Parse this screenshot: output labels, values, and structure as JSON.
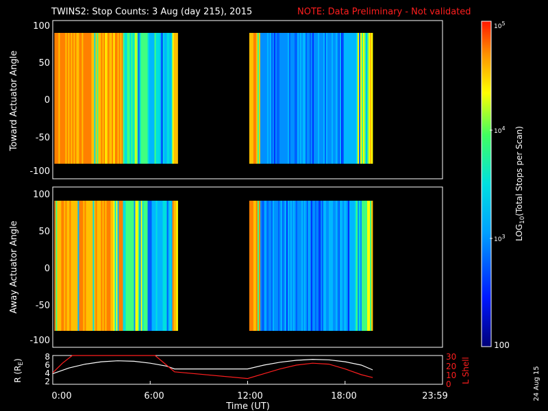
{
  "header": {
    "title": "TWINS2: Stop Counts:  3 Aug (day 215), 2015",
    "note": "NOTE: Data Preliminary - Not validated",
    "note_color": "#ff1e1e"
  },
  "footer": {
    "date_stamp": "24 Aug 15"
  },
  "chart_data": [
    {
      "type": "heatmap",
      "ylabel": "Toward Actuator Angle",
      "ylim": [
        -100,
        100
      ],
      "yticks": [
        "100",
        "50",
        "0",
        "-50",
        "-100"
      ],
      "x_range_hours": [
        0,
        24
      ],
      "data_segments_hours": [
        [
          0.1,
          7.7
        ],
        [
          12.1,
          19.7
        ]
      ],
      "colorscale": "log10, 100 to 100000 (blue to red)"
    },
    {
      "type": "heatmap",
      "ylabel": "Away Actuator Angle",
      "ylim": [
        -100,
        100
      ],
      "yticks": [
        "100",
        "50",
        "0",
        "-50",
        "-100"
      ],
      "x_range_hours": [
        0,
        24
      ],
      "data_segments_hours": [
        [
          0.1,
          7.7
        ],
        [
          12.1,
          19.7
        ]
      ],
      "colorscale": "log10, 100 to 100000 (blue to red)"
    },
    {
      "type": "line",
      "xlabel": "Time (UT)",
      "xticks": [
        "0:00",
        "6:00",
        "12:00",
        "18:00",
        "23:59"
      ],
      "left_axis": {
        "label": "R (RE)",
        "label_main": "R (R",
        "label_sub": "E",
        "label_end": ")",
        "ticks": [
          "8",
          "6",
          "4",
          "2"
        ],
        "ylim": [
          2,
          8
        ]
      },
      "right_axis": {
        "label": "L Shell",
        "ticks": [
          "30",
          "20",
          "10",
          "0"
        ],
        "ylim": [
          0,
          30
        ],
        "color": "#ff1e1e"
      },
      "series": [
        {
          "name": "R",
          "color": "#ffffff",
          "x": [
            0.0,
            1.0,
            2.0,
            3.0,
            4.0,
            5.0,
            6.0,
            7.0,
            7.5,
            12.0,
            13.0,
            14.0,
            15.0,
            16.0,
            17.0,
            18.0,
            19.0,
            19.7
          ],
          "y": [
            4.2,
            5.4,
            6.2,
            6.7,
            6.9,
            6.8,
            6.4,
            5.8,
            5.2,
            5.2,
            6.0,
            6.6,
            7.0,
            7.2,
            7.1,
            6.7,
            6.0,
            5.0
          ]
        },
        {
          "name": "L Shell",
          "color": "#ff1e1e",
          "x": [
            0.0,
            0.6,
            1.2,
            6.3,
            7.5,
            12.0,
            13.0,
            14.0,
            15.0,
            16.0,
            17.0,
            18.0,
            19.0,
            19.7
          ],
          "y": [
            12,
            22,
            31,
            31,
            13,
            6,
            11,
            16,
            20,
            22,
            21,
            16,
            10,
            7
          ]
        }
      ]
    }
  ],
  "colorbar": {
    "label": "LOG10(Total Stops per Scan)",
    "label_pre": "LOG",
    "label_sub": "10",
    "label_post": "(Total Stops per Scan)",
    "tick_labels": [
      {
        "base": "10",
        "exp": "5",
        "value": 100000
      },
      {
        "base": "10",
        "exp": "4",
        "value": 10000
      },
      {
        "base": "10",
        "exp": "3",
        "value": 1000
      }
    ],
    "bottom_label": "100",
    "range": [
      100,
      100000
    ],
    "scale": "log"
  }
}
